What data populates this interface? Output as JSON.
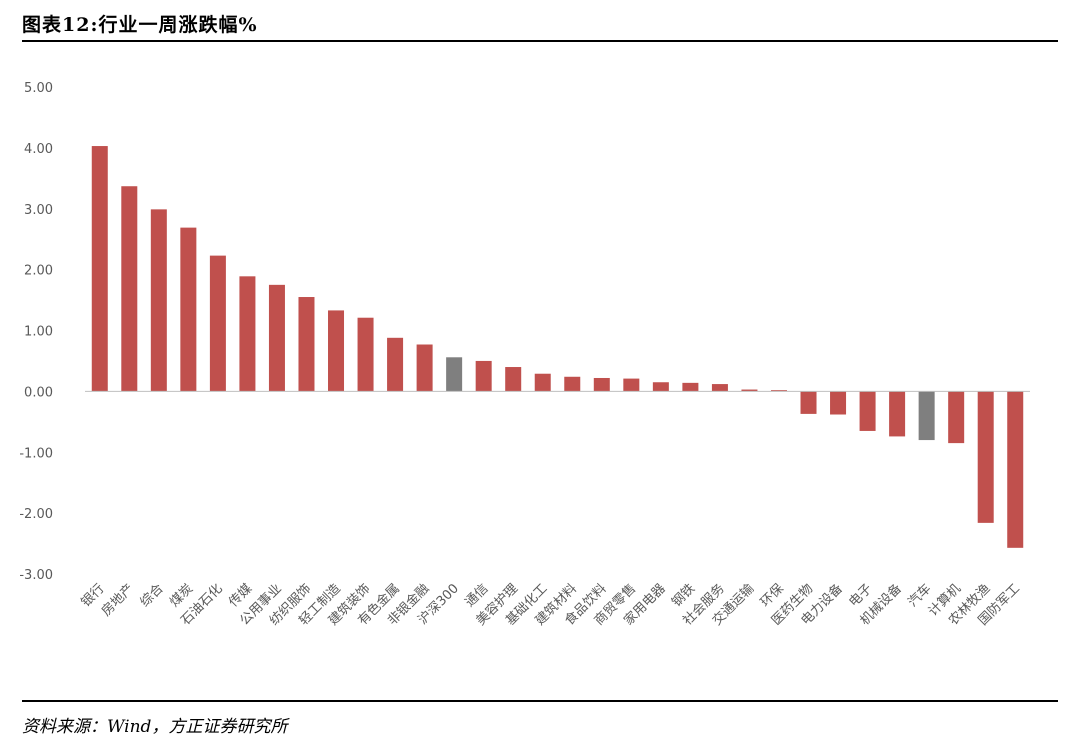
{
  "header": {
    "title": "图表12:行业一周涨跌幅%"
  },
  "footer": {
    "source": "资料来源：Wind，方正证券研究所"
  },
  "colors": {
    "bar": "#c0504d",
    "highlight": "#7f7f7f",
    "axis_text": "#595959",
    "baseline": "#bfbfbf"
  },
  "chart_data": {
    "type": "bar",
    "title": "",
    "xlabel": "",
    "ylabel": "",
    "ylim": [
      -3,
      5
    ],
    "yticks": [
      "5.00",
      "4.00",
      "3.00",
      "2.00",
      "1.00",
      "0.00",
      "-1.00",
      "-2.00",
      "-3.00"
    ],
    "grid": false,
    "legend": "none",
    "categories": [
      "银行",
      "房地产",
      "综合",
      "煤炭",
      "石油石化",
      "传媒",
      "公用事业",
      "纺织服饰",
      "轻工制造",
      "建筑装饰",
      "有色金属",
      "非银金融",
      "沪深300",
      "通信",
      "美容护理",
      "基础化工",
      "建筑材料",
      "食品饮料",
      "商贸零售",
      "家用电器",
      "钢铁",
      "社会服务",
      "交通运输",
      "环保",
      "医药生物",
      "电力设备",
      "电子",
      "机械设备",
      "汽车",
      "计算机",
      "农林牧渔",
      "国防军工"
    ],
    "values": [
      4.03,
      3.37,
      2.99,
      2.69,
      2.23,
      1.89,
      1.75,
      1.55,
      1.33,
      1.21,
      0.88,
      0.77,
      0.56,
      0.5,
      0.4,
      0.29,
      0.24,
      0.22,
      0.21,
      0.15,
      0.14,
      0.12,
      0.03,
      0.02,
      -0.37,
      -0.38,
      -0.65,
      -0.74,
      -0.8,
      -0.85,
      -2.16,
      -2.57
    ],
    "highlight": [
      "沪深300",
      "汽车"
    ]
  }
}
